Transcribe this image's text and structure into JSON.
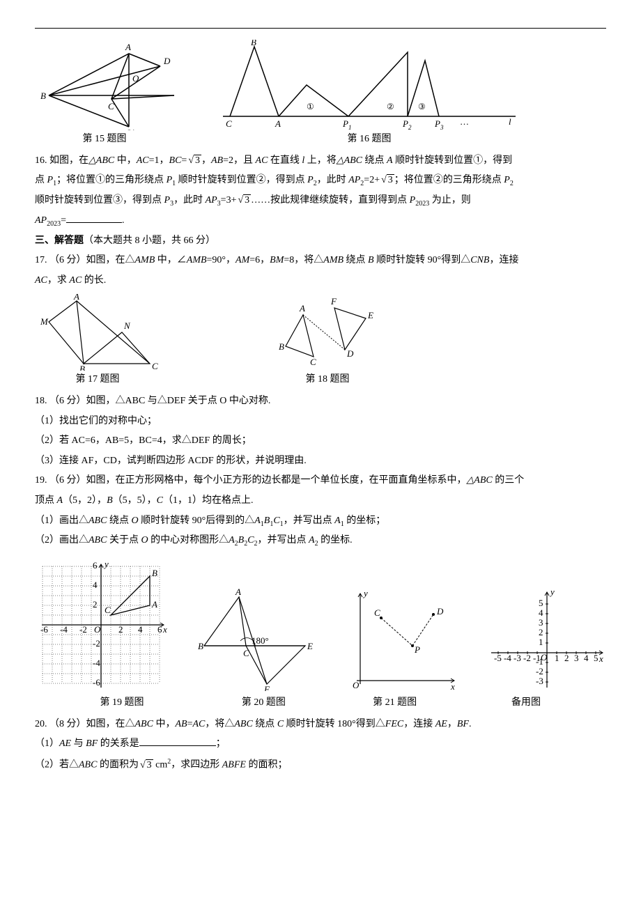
{
  "top_figs": {
    "fig15_caption": "第 15 题图",
    "fig15": {
      "labels": {
        "A": "A",
        "B": "B",
        "C": "C",
        "D": "D",
        "O": "O",
        "Op": "O′",
        "Bp": "B′"
      }
    },
    "fig16_caption": "第 16 题图",
    "fig16": {
      "labels": {
        "B": "B",
        "C": "C",
        "A": "A",
        "P1": "P",
        "P2": "P",
        "P3": "P",
        "l": "l",
        "dots": "…"
      },
      "circled": [
        "①",
        "②",
        "③"
      ]
    }
  },
  "q16": {
    "num": "16.",
    "line1a": " 如图，在",
    "tri_abc": "△ABC",
    "line1b": " 中，",
    "ac": "AC",
    "eq1": "=1，",
    "bc": "BC",
    "eq": "=",
    "sqrt3": "3",
    "comma1": "，",
    "ab": "AB",
    "eq2": "=2，且 ",
    "ac2": "AC",
    "line1c": " 在直线 ",
    "l": "l",
    "line1d": " 上，将",
    "tri_abc2": "△ABC",
    "line1e": " 绕点 ",
    "a": "A",
    "line1f": " 顺时针旋转到位置①，得到",
    "line2a": "点 ",
    "p1": "P",
    "sub1": "1",
    "line2b": "；将位置①的三角形绕点 ",
    "p1b": "P",
    "line2c": " 顺时针旋转到位置②，得到点 ",
    "p2": "P",
    "sub2": "2",
    "line2d": "，此时 ",
    "ap2": "AP",
    "eq3": "=2+",
    "line2e": "；将位置②的三角形绕点 ",
    "line3a": "顺时针旋转到位置③，得到点 ",
    "p3": "P",
    "sub3": "3",
    "line3b": "，此时 ",
    "ap3": "AP",
    "eq4": "=3+",
    "line3c": "……按此规律继续旋转，直到得到点 ",
    "p2023": "P",
    "sub2023": "2023",
    "line3d": " 为止，则",
    "line4a": "AP",
    "line4b": "=",
    "period": "."
  },
  "section3": {
    "title": "三、解答题",
    "note": "（本大题共 8 小题，共 66 分）"
  },
  "q17": {
    "num": "17.",
    "pts": "（6 分）如图，在△",
    "amb": "AMB",
    "t1": " 中，∠",
    "amb2": "AMB",
    "t2": "=90°，",
    "am": "AM",
    "t3": "=6，",
    "bm": "BM",
    "t4": "=8，将△",
    "amb3": "AMB",
    "t5": " 绕点 ",
    "b": "B",
    "t6": " 顺时针旋转 90°得到△",
    "cnb": "CNB",
    "t7": "，连接",
    "line2": "AC",
    "t8": "，求 ",
    "ac2": "AC",
    "t9": " 的长.",
    "fig17_caption": "第 17 题图",
    "fig18_caption": "第 18 题图"
  },
  "q18": {
    "num": "18.",
    "t1": "（6 分）如图，△ABC 与△DEF 关于点 O 中心对称.",
    "s1": "（1）找出它们的对称中心；",
    "s2": "（2）若 AC=6，AB=5，BC=4，求△DEF 的周长；",
    "s3": "（3）连接 AF，CD，试判断四边形 ACDF 的形状，并说明理由."
  },
  "q19": {
    "num": "19.",
    "t1": "（6 分）如图，在正方形网格中，每个小正方形的边长都是一个单位长度，在平面直角坐标系中，",
    "tri": "△ABC",
    "t2": " 的三个",
    "line2a": "顶点 ",
    "a": "A",
    "coords_a": "（5，2），",
    "b": "B",
    "coords_b": "（5，5），",
    "c": "C",
    "coords_c": "（1，1）均在格点上.",
    "s1a": "（1）画出△",
    "abc": "ABC",
    "s1b": " 绕点 ",
    "o": "O",
    "s1c": " 顺时针旋转 90°后得到的△",
    "a1b1c1": "A",
    "s1_sub1": "1",
    "b1": "B",
    "c1": "C",
    "s1d": "，并写出点 ",
    "a1": "A",
    "s1e": " 的坐标；",
    "s2a": "（2）画出△",
    "s2b": " 关于点 ",
    "s2c": " 的中心对称图形△",
    "a2b2c2": "A",
    "s2_sub2": "2",
    "b2": "B",
    "c2": "C",
    "s2d": "，并写出点 ",
    "a2": "A",
    "s2e": " 的坐标.",
    "fig19_caption": "第 19 题图",
    "fig20_caption": "第 20 题图",
    "fig21_caption": "第 21 题图",
    "fig_bak_caption": "备用图"
  },
  "q20": {
    "num": "20.",
    "t1": "（8 分）如图，在△",
    "abc": "ABC",
    "t2": " 中，",
    "ab": "AB",
    "eq": "=",
    "ac": "AC",
    "t3": "，将△",
    "t4": " 绕点 ",
    "c": "C",
    "t5": " 顺时针旋转 180°得到△",
    "fec": "FEC",
    "t6": "，连接 ",
    "ae": "AE",
    "comma": "，",
    "bf": "BF",
    "period": ".",
    "s1a": "（1）",
    "s1b": " 与 ",
    "s1c": " 的关系是",
    "s1d": "；",
    "s2a": "（2）若△",
    "s2b": " 的面积为",
    "sqrt3": "3",
    "s2c": "  cm",
    "sup2": "2",
    "s2d": "，求四边形 ",
    "abfe": "ABFE",
    "s2e": " 的面积；"
  },
  "fig19": {
    "xlim": [
      -6,
      6
    ],
    "ylim": [
      -6,
      6
    ],
    "pts": {
      "A": [
        5,
        2
      ],
      "B": [
        5,
        5
      ],
      "C": [
        1,
        1
      ]
    },
    "labels": {
      "x": "x",
      "y": "y",
      "O": "O",
      "A": "A",
      "B": "B",
      "C": "C"
    }
  },
  "fig20": {
    "labels": {
      "A": "A",
      "B": "B",
      "C": "C",
      "E": "E",
      "F": "F",
      "ang": "180°"
    }
  },
  "fig21": {
    "labels": {
      "x": "x",
      "y": "y",
      "O": "O",
      "C": "C",
      "D": "D",
      "P": "P"
    }
  },
  "fig_bak": {
    "labels": {
      "x": "x",
      "y": "y",
      "O": "O"
    },
    "xticks": [
      -5,
      -4,
      -3,
      -2,
      -1,
      1,
      2,
      3,
      4,
      5
    ],
    "yticks": [
      -3,
      -2,
      -1,
      1,
      2,
      3,
      4,
      5
    ]
  }
}
